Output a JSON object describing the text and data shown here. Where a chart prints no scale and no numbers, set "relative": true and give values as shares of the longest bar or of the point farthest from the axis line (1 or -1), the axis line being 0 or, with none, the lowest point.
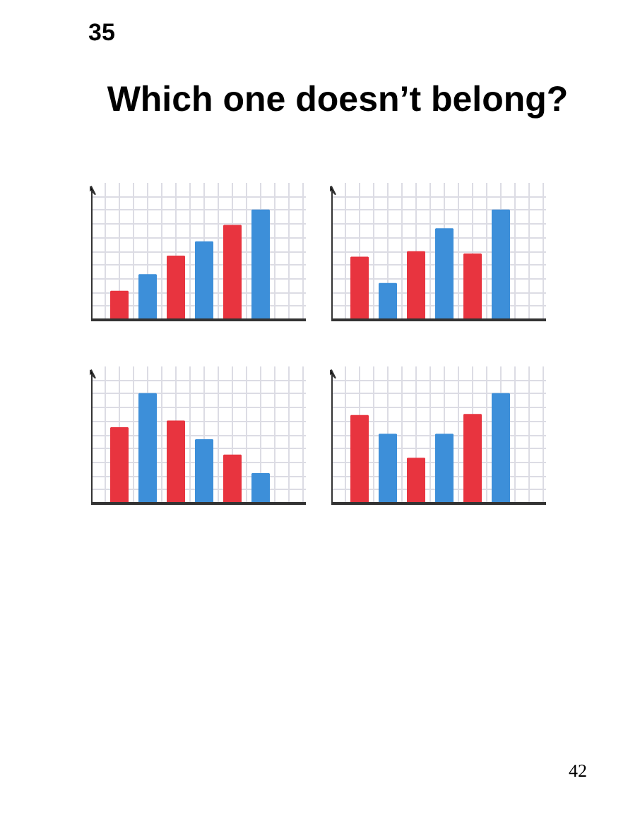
{
  "chart_data": [
    {
      "type": "other",
      "title": "Which one doesn’t belong?",
      "annotations": [
        "35"
      ]
    },
    {
      "type": "bar",
      "relative": true,
      "grid": true,
      "categories": [
        null,
        null,
        null,
        null,
        null,
        null
      ],
      "values": [
        0.26,
        0.41,
        0.58,
        0.71,
        0.86,
        1
      ],
      "colors": [
        "#e8343f",
        "#3d8fd9",
        "#e8343f",
        "#3d8fd9",
        "#e8343f",
        "#3d8fd9"
      ]
    },
    {
      "type": "bar",
      "relative": true,
      "grid": true,
      "categories": [
        null,
        null,
        null,
        null,
        null,
        null
      ],
      "values": [
        0.57,
        0.33,
        0.62,
        0.83,
        0.6,
        1
      ],
      "colors": [
        "#e8343f",
        "#3d8fd9",
        "#e8343f",
        "#3d8fd9",
        "#e8343f",
        "#3d8fd9"
      ]
    },
    {
      "type": "bar",
      "relative": true,
      "grid": true,
      "categories": [
        null,
        null,
        null,
        null,
        null,
        null
      ],
      "values": [
        0.69,
        1,
        0.75,
        0.58,
        0.44,
        0.27
      ],
      "colors": [
        "#e8343f",
        "#3d8fd9",
        "#e8343f",
        "#3d8fd9",
        "#e8343f",
        "#3d8fd9"
      ]
    },
    {
      "type": "bar",
      "relative": true,
      "grid": true,
      "categories": [
        null,
        null,
        null,
        null,
        null,
        null
      ],
      "values": [
        0.8,
        0.63,
        0.41,
        0.63,
        0.81,
        1
      ],
      "colors": [
        "#e8343f",
        "#3d8fd9",
        "#e8343f",
        "#3d8fd9",
        "#e8343f",
        "#3d8fd9"
      ]
    },
    {
      "type": "other",
      "annotations": [
        "42"
      ]
    }
  ]
}
